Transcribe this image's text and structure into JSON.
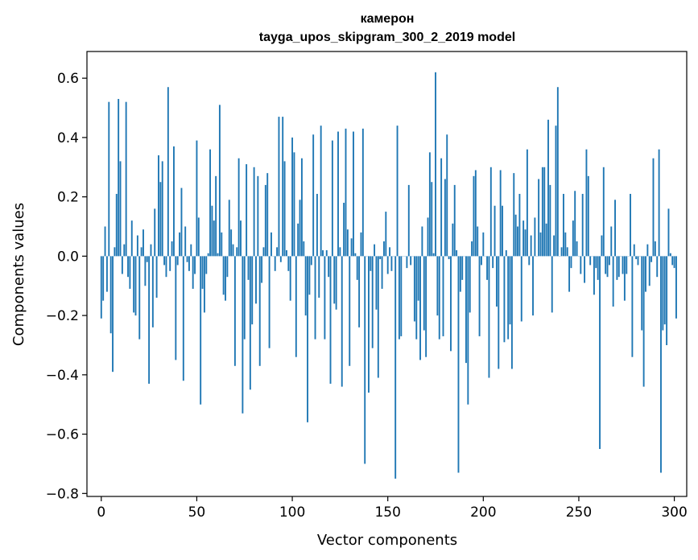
{
  "chart_data": {
    "type": "bar",
    "title": "камерон",
    "subtitle": "tayga_upos_skipgram_300_2_2019 model",
    "xlabel": "Vector components",
    "ylabel": "Components values",
    "xlim": [
      -7.5,
      306.5
    ],
    "ylim": [
      -0.81,
      0.69
    ],
    "xticks": [
      0,
      50,
      100,
      150,
      200,
      250,
      300
    ],
    "yticks": [
      -0.8,
      -0.6,
      -0.4,
      -0.2,
      0.0,
      0.2,
      0.4,
      0.6
    ],
    "xtick_labels": [
      "0",
      "50",
      "100",
      "150",
      "200",
      "250",
      "300"
    ],
    "ytick_labels": [
      "−0.8",
      "−0.6",
      "−0.4",
      "−0.2",
      "0.0",
      "0.2",
      "0.4",
      "0.6"
    ],
    "bar_color": "#1f77b4",
    "values": [
      -0.21,
      -0.15,
      0.1,
      -0.12,
      0.52,
      -0.26,
      -0.39,
      0.03,
      0.21,
      0.53,
      0.32,
      -0.06,
      0.04,
      0.52,
      -0.07,
      -0.11,
      0.12,
      -0.19,
      -0.2,
      0.07,
      -0.28,
      0.03,
      0.09,
      -0.1,
      -0.02,
      -0.43,
      0.04,
      -0.24,
      0.16,
      -0.14,
      0.34,
      0.25,
      0.32,
      -0.03,
      -0.07,
      0.57,
      -0.05,
      0.05,
      0.37,
      -0.35,
      -0.03,
      0.08,
      0.23,
      -0.42,
      0.1,
      -0.02,
      -0.05,
      0.04,
      -0.11,
      -0.06,
      0.39,
      0.13,
      -0.5,
      -0.11,
      -0.19,
      -0.06,
      0.01,
      0.36,
      0.17,
      0.12,
      0.27,
      0.01,
      0.51,
      0.08,
      -0.13,
      -0.15,
      -0.07,
      0.19,
      0.09,
      0.04,
      -0.37,
      0.03,
      0.33,
      0.12,
      -0.53,
      -0.28,
      0.31,
      -0.08,
      -0.45,
      -0.23,
      0.3,
      -0.16,
      0.27,
      -0.37,
      -0.09,
      0.03,
      0.24,
      0.28,
      -0.31,
      0.08,
      0.0,
      -0.05,
      0.03,
      0.47,
      -0.02,
      0.47,
      0.32,
      0.02,
      -0.05,
      -0.15,
      0.4,
      0.35,
      -0.34,
      0.11,
      0.19,
      0.33,
      0.05,
      -0.2,
      -0.56,
      -0.13,
      -0.03,
      0.41,
      -0.28,
      0.21,
      -0.14,
      0.44,
      0.02,
      -0.28,
      0.02,
      -0.07,
      -0.43,
      0.39,
      -0.16,
      -0.18,
      0.42,
      0.03,
      -0.44,
      0.18,
      0.43,
      0.09,
      -0.37,
      0.06,
      0.42,
      0.01,
      -0.08,
      -0.24,
      0.08,
      0.43,
      -0.7,
      0.0,
      -0.46,
      -0.05,
      -0.31,
      0.04,
      -0.18,
      -0.41,
      -0.01,
      -0.11,
      0.05,
      0.15,
      -0.06,
      0.03,
      -0.05,
      0.0,
      -0.75,
      0.44,
      -0.28,
      -0.27,
      0.0,
      0.0,
      -0.04,
      0.24,
      -0.03,
      0.0,
      -0.22,
      -0.28,
      -0.15,
      -0.35,
      0.1,
      -0.25,
      -0.34,
      0.13,
      0.35,
      0.25,
      0.01,
      0.62,
      -0.2,
      -0.28,
      0.33,
      -0.27,
      0.26,
      0.41,
      -0.01,
      -0.32,
      0.11,
      0.24,
      0.02,
      -0.73,
      -0.12,
      -0.08,
      0.0,
      -0.36,
      -0.5,
      -0.19,
      0.05,
      0.27,
      0.29,
      0.1,
      -0.27,
      -0.03,
      0.08,
      0.0,
      -0.08,
      -0.41,
      0.3,
      -0.04,
      0.17,
      -0.17,
      -0.38,
      0.29,
      0.17,
      -0.29,
      0.02,
      -0.28,
      -0.23,
      -0.38,
      0.28,
      0.14,
      0.1,
      0.21,
      -0.22,
      0.12,
      0.09,
      0.36,
      -0.03,
      0.07,
      -0.2,
      0.13,
      0.0,
      0.26,
      0.08,
      0.3,
      0.3,
      0.11,
      0.46,
      0.24,
      -0.19,
      0.07,
      0.44,
      0.57,
      0.0,
      0.03,
      0.21,
      0.08,
      0.03,
      -0.12,
      -0.04,
      0.12,
      0.22,
      0.05,
      0.0,
      -0.06,
      0.21,
      -0.09,
      0.36,
      0.27,
      -0.03,
      0.0,
      -0.13,
      -0.04,
      -0.08,
      -0.65,
      0.07,
      0.3,
      -0.06,
      -0.07,
      -0.03,
      0.1,
      -0.17,
      0.19,
      -0.08,
      -0.07,
      0.0,
      -0.06,
      -0.15,
      -0.06,
      0.0,
      0.21,
      -0.34,
      0.04,
      -0.01,
      -0.03,
      0.0,
      -0.25,
      -0.44,
      -0.12,
      0.04,
      -0.1,
      -0.02,
      0.33,
      0.05,
      -0.07,
      0.36,
      -0.73,
      -0.25,
      -0.23,
      -0.3,
      0.16,
      0.01,
      -0.03,
      -0.04,
      -0.21
    ]
  }
}
